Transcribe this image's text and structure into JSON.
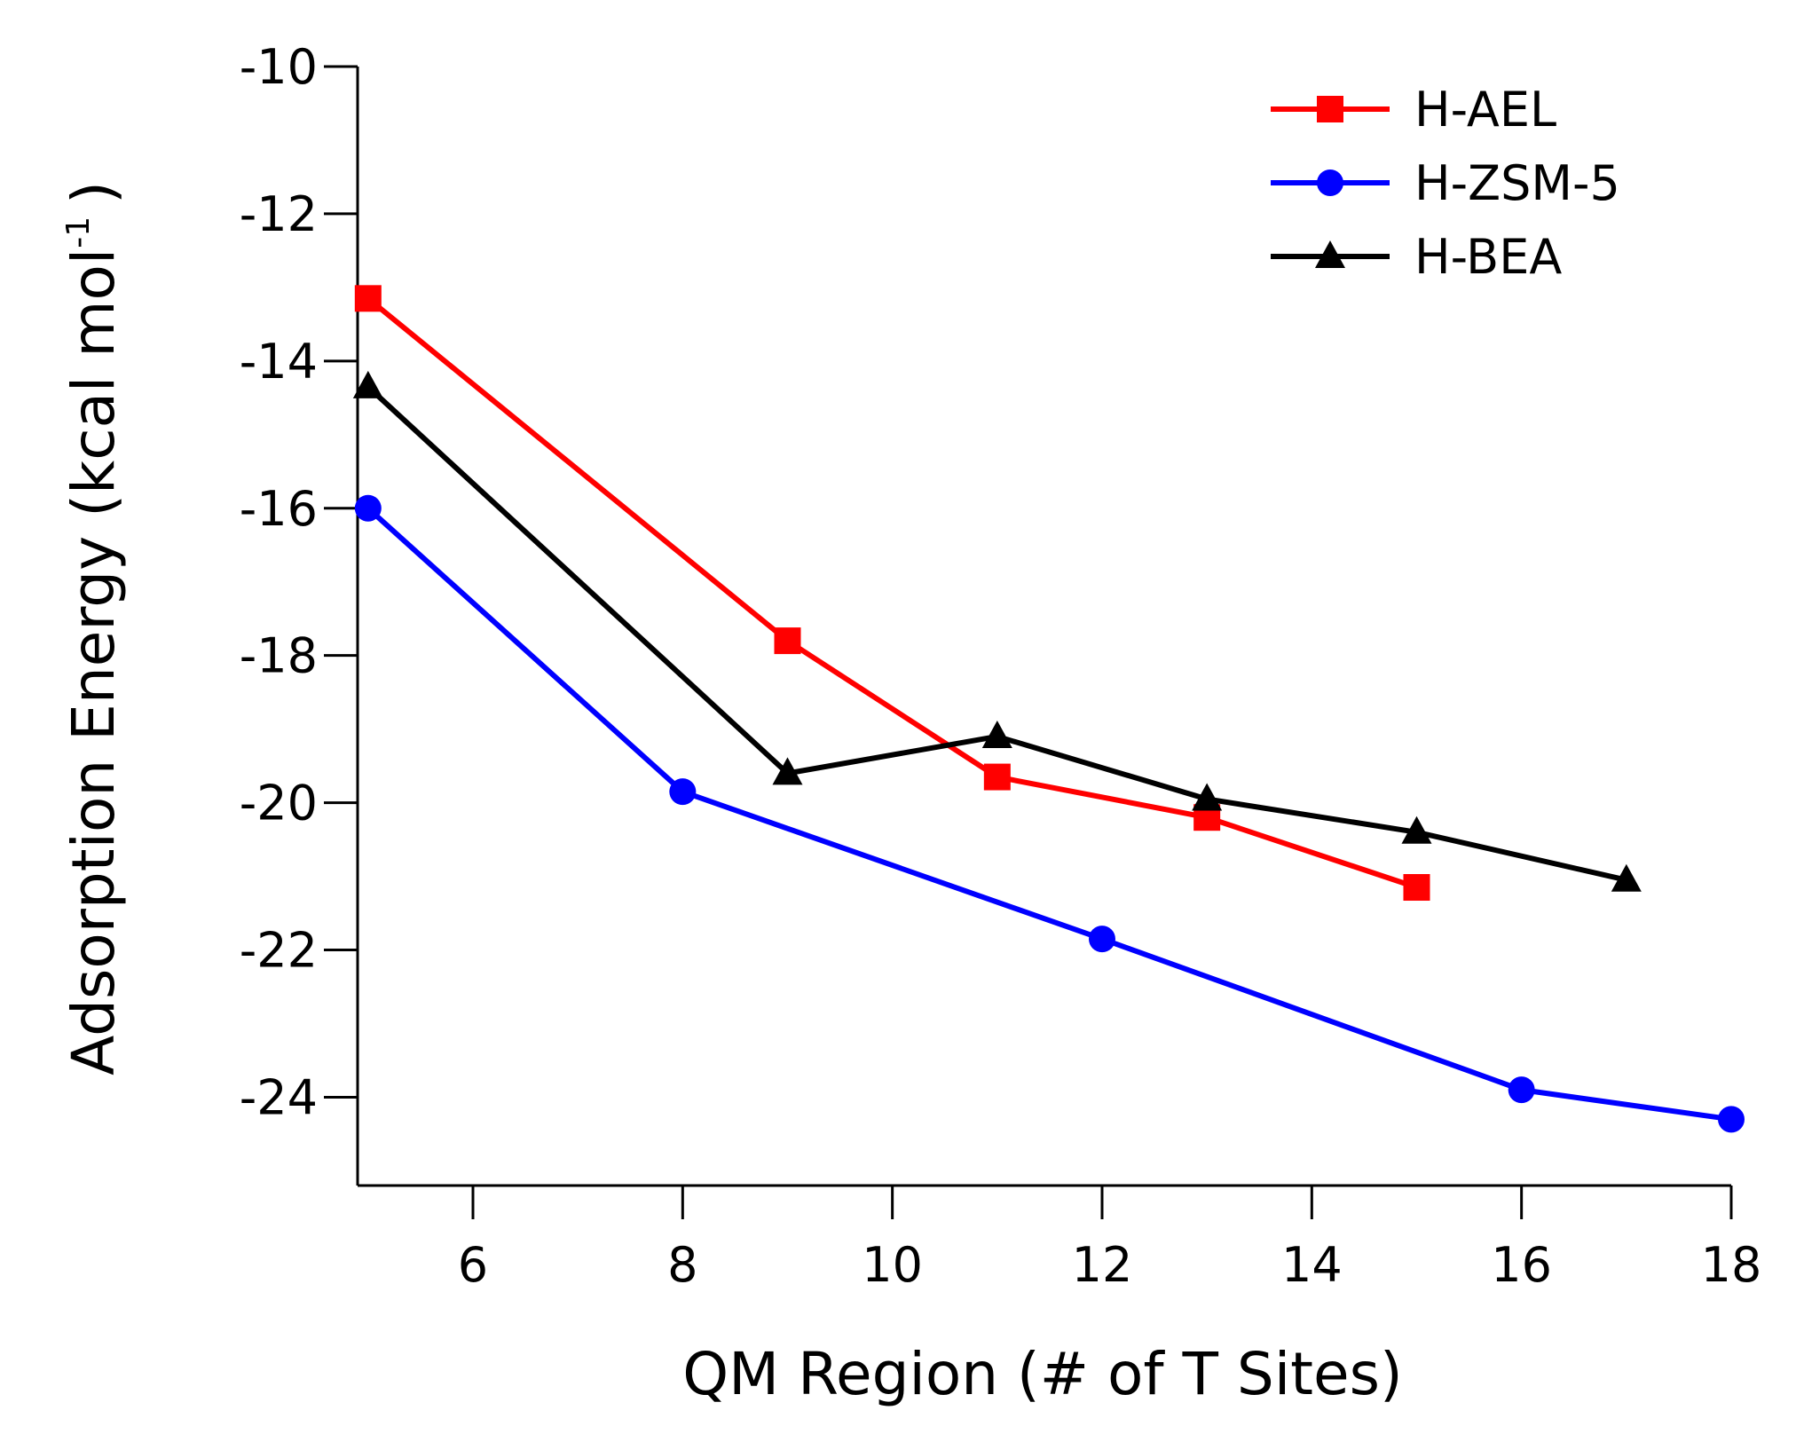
{
  "chart_data": {
    "type": "line",
    "title": "",
    "xlabel": "QM Region (# of T Sites)",
    "ylabel": "Adsorption Energy (kcal mol",
    "ylabel_sup": "-1",
    "ylabel_close": ")",
    "xlim": [
      4.9,
      18
    ],
    "ylim": [
      -25.2,
      -10
    ],
    "x_ticks": [
      6,
      8,
      10,
      12,
      14,
      16,
      18
    ],
    "x_tick_labels": [
      "6",
      "8",
      "10",
      "12",
      "14",
      "16",
      "18"
    ],
    "y_ticks": [
      -10,
      -12,
      -14,
      -16,
      -18,
      -20,
      -22,
      -24
    ],
    "y_tick_labels": [
      "-10",
      "-12",
      "-14",
      "-16",
      "-18",
      "-20",
      "-22",
      "-24"
    ],
    "grid": false,
    "legend_position": "top-right",
    "series": [
      {
        "name": "H-AEL",
        "color": "#ff0000",
        "marker": "square",
        "x": [
          5,
          9,
          11,
          13,
          15
        ],
        "y": [
          -13.15,
          -17.8,
          -19.65,
          -20.2,
          -21.15
        ]
      },
      {
        "name": "H-ZSM-5",
        "color": "#0000ff",
        "marker": "circle",
        "x": [
          5,
          8,
          12,
          16,
          18
        ],
        "y": [
          -16.0,
          -19.85,
          -21.85,
          -23.9,
          -24.3
        ]
      },
      {
        "name": "H-BEA",
        "color": "#000000",
        "marker": "triangle",
        "x": [
          5,
          9,
          11,
          13,
          15,
          17
        ],
        "y": [
          -14.35,
          -19.6,
          -19.1,
          -19.95,
          -20.4,
          -21.05
        ]
      }
    ]
  }
}
